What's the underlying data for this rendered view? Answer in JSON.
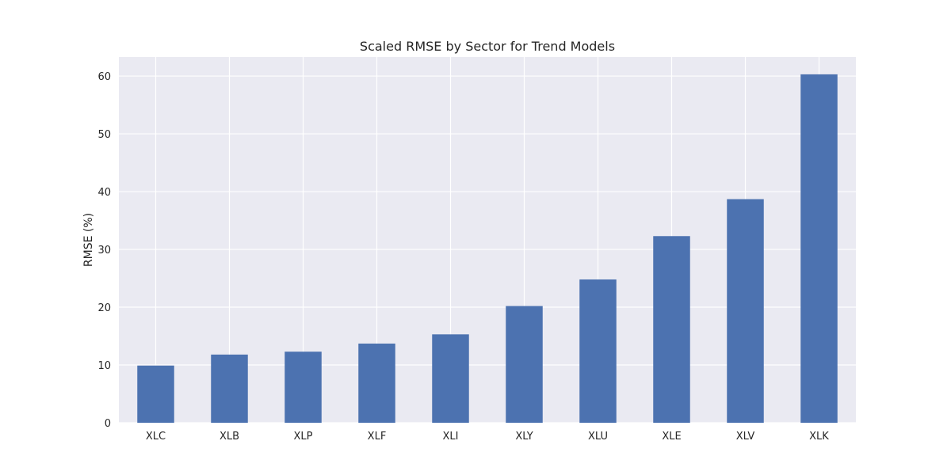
{
  "chart_data": {
    "type": "bar",
    "title": "Scaled RMSE by Sector for Trend Models",
    "xlabel": "",
    "ylabel": "RMSE (%)",
    "categories": [
      "XLC",
      "XLB",
      "XLP",
      "XLF",
      "XLI",
      "XLY",
      "XLU",
      "XLE",
      "XLV",
      "XLK"
    ],
    "values": [
      9.9,
      11.8,
      12.3,
      13.7,
      15.3,
      20.2,
      24.8,
      32.3,
      38.7,
      60.3
    ],
    "ylim": [
      0,
      63.3
    ],
    "yticks": [
      0,
      10,
      20,
      30,
      40,
      50,
      60
    ],
    "grid": true,
    "legend": "none",
    "colors": {
      "bar": "#4c72b0",
      "plot_background": "#eaeaf2",
      "grid": "#ffffff",
      "text": "#262626"
    }
  }
}
